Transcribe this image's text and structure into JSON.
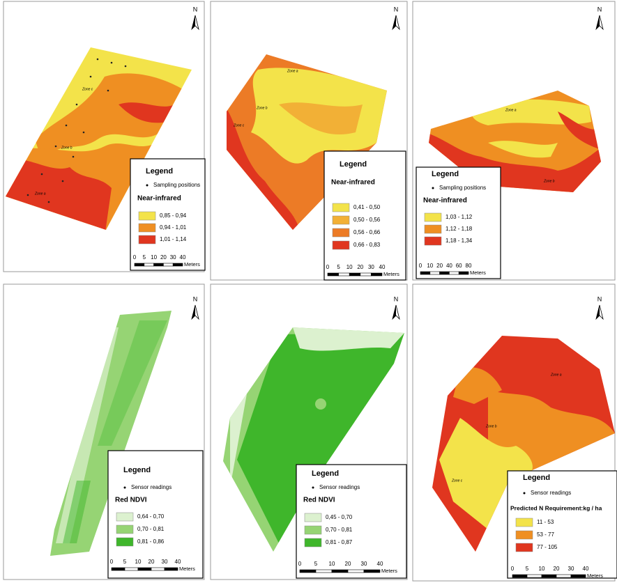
{
  "panels": [
    {
      "north": "N",
      "zones": [
        "Zone c",
        "Zone b",
        "Zone a"
      ],
      "legend": {
        "title": "Legend",
        "point_label": "Sampling positions",
        "layer": "Near-infrared",
        "classes": [
          {
            "label": "0,85 - 0,94",
            "color": "#f3e34a"
          },
          {
            "label": "0,94 - 1,01",
            "color": "#ef8f22"
          },
          {
            "label": "1,01 - 1,14",
            "color": "#e0361f"
          }
        ],
        "scale": [
          "0",
          "5",
          "10",
          "20",
          "30",
          "40"
        ],
        "unit": "Meters"
      }
    },
    {
      "north": "N",
      "zones": [
        "Zone a",
        "Zone b",
        "Zone c"
      ],
      "legend": {
        "title": "Legend",
        "layer": "Near-infrared",
        "classes": [
          {
            "label": "0,41 - 0,50",
            "color": "#f3e34a"
          },
          {
            "label": "0,50 - 0,56",
            "color": "#f2b036"
          },
          {
            "label": "0,56 - 0,66",
            "color": "#ec7b26"
          },
          {
            "label": "0,66 - 0,83",
            "color": "#e0361f"
          }
        ],
        "scale": [
          "0",
          "5",
          "10",
          "20",
          "30",
          "40"
        ],
        "unit": "Meters"
      }
    },
    {
      "north": "N",
      "zones": [
        "Zone a",
        "Zone b"
      ],
      "legend": {
        "title": "Legend",
        "point_label": "Sampling positions",
        "layer": "Near-infrared",
        "classes": [
          {
            "label": "1,03 - 1,12",
            "color": "#f3e34a"
          },
          {
            "label": "1,12 - 1,18",
            "color": "#ef8f22"
          },
          {
            "label": "1,18 - 1,34",
            "color": "#e0361f"
          }
        ],
        "scale": [
          "0",
          "10",
          "20",
          "40",
          "60",
          "80"
        ],
        "unit": "Meters"
      }
    },
    {
      "north": "N",
      "zones": [],
      "legend": {
        "title": "Legend",
        "point_label": "Sensor readings",
        "layer": "Red  NDVI",
        "classes": [
          {
            "label": "0,64 - 0,70",
            "color": "#dcf1cf"
          },
          {
            "label": "0,70 - 0,81",
            "color": "#96d474"
          },
          {
            "label": "0,81 - 0,86",
            "color": "#3fb62b"
          }
        ],
        "scale": [
          "0",
          "5",
          "10",
          "20",
          "30",
          "40"
        ],
        "unit": "Meters"
      }
    },
    {
      "north": "N",
      "zones": [],
      "legend": {
        "title": "Legend",
        "point_label": "Sensor readings",
        "layer": "Red NDVI",
        "classes": [
          {
            "label": "0,45 - 0,70",
            "color": "#dcf1cf"
          },
          {
            "label": "0,70 - 0,81",
            "color": "#96d474"
          },
          {
            "label": "0,81 - 0,87",
            "color": "#3fb62b"
          }
        ],
        "scale": [
          "0",
          "5",
          "10",
          "20",
          "30",
          "40"
        ],
        "unit": "Meters"
      }
    },
    {
      "north": "N",
      "zones": [
        "Zone a",
        "Zone b",
        "Zone c"
      ],
      "legend": {
        "title": "Legend",
        "point_label": "Sensor readings",
        "layer": "Predicted N Requirement:kg / ha",
        "classes": [
          {
            "label": "11 - 53",
            "color": "#f3e34a"
          },
          {
            "label": "53 - 77",
            "color": "#ef8f22"
          },
          {
            "label": "77 - 105",
            "color": "#e0361f"
          }
        ],
        "scale": [
          "0",
          "5",
          "10",
          "20",
          "30",
          "40"
        ],
        "unit": "Meters"
      }
    }
  ]
}
